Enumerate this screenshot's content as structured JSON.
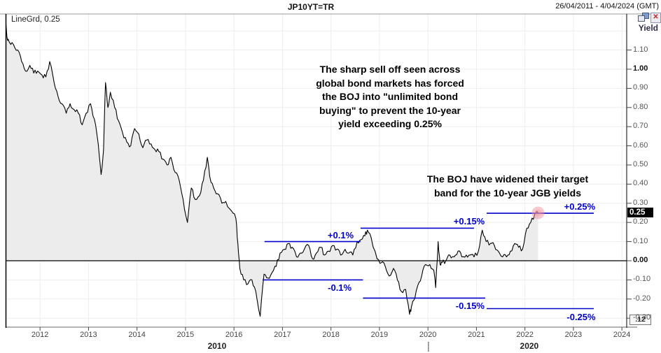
{
  "header": {
    "title": "JP10YT=TR",
    "date_range": "26/04/2011 - 4/04/2024 (GMT)"
  },
  "legend": {
    "series_label": "LineGrd, 0.25"
  },
  "y_axis": {
    "title": "Yield",
    "last_price": "0.25",
    "decimals_box": ".12",
    "ticks": [
      {
        "label": "1.10",
        "value": 1.1,
        "bold": false
      },
      {
        "label": "1.00",
        "value": 1.0,
        "bold": true
      },
      {
        "label": "0.90",
        "value": 0.9,
        "bold": false
      },
      {
        "label": "0.80",
        "value": 0.8,
        "bold": false
      },
      {
        "label": "0.70",
        "value": 0.7,
        "bold": false
      },
      {
        "label": "0.60",
        "value": 0.6,
        "bold": false
      },
      {
        "label": "0.50",
        "value": 0.5,
        "bold": false
      },
      {
        "label": "0.40",
        "value": 0.4,
        "bold": false
      },
      {
        "label": "0.30",
        "value": 0.3,
        "bold": false
      },
      {
        "label": "0.20",
        "value": 0.2,
        "bold": false
      },
      {
        "label": "0.10",
        "value": 0.1,
        "bold": false
      },
      {
        "label": "0.00",
        "value": 0.0,
        "bold": true
      },
      {
        "label": "-0.10",
        "value": -0.1,
        "bold": false
      },
      {
        "label": "-0.20",
        "value": -0.2,
        "bold": false
      },
      {
        "label": "-0.30",
        "value": -0.3,
        "bold": false
      }
    ],
    "grid_values": [
      1.2,
      1.1,
      1.0,
      0.9,
      0.8,
      0.7,
      0.6,
      0.5,
      0.4,
      0.3,
      0.2,
      0.1,
      -0.1,
      -0.2,
      -0.3
    ]
  },
  "x_axis": {
    "year_ticks": [
      {
        "label": "2012",
        "year": 2012
      },
      {
        "label": "2013",
        "year": 2013
      },
      {
        "label": "2014",
        "year": 2014
      },
      {
        "label": "2015",
        "year": 2015
      },
      {
        "label": "2016",
        "year": 2016
      },
      {
        "label": "2017",
        "year": 2017
      },
      {
        "label": "2018",
        "year": 2018
      },
      {
        "label": "2019",
        "year": 2019
      },
      {
        "label": "2020",
        "year": 2020
      },
      {
        "label": "2021",
        "year": 2021
      },
      {
        "label": "2022",
        "year": 2022
      },
      {
        "label": "2023",
        "year": 2023
      },
      {
        "label": "2024",
        "year": 2024
      }
    ],
    "decade_labels": [
      {
        "label": "2010",
        "center_year": 2015.65
      },
      {
        "label": "2020",
        "center_year": 2022.09
      }
    ],
    "decade_divider_year": 2020.01
  },
  "annotations": {
    "unlimited_buying_lines": [
      "The sharp sell off seen across",
      "global bond markets has forced",
      "the BOJ into \"unlimited bond",
      "buying\" to prevent the 10-year",
      "yield exceeding 0.25%"
    ],
    "widened_band_lines": [
      "The BOJ have widened their target",
      "band for the 10-year JGB yields"
    ]
  },
  "chart_data": {
    "type": "line",
    "title": "JP10YT=TR",
    "ylabel": "Yield",
    "x_range": [
      2011.29,
      2024.1
    ],
    "y_range": [
      -0.34,
      1.29
    ],
    "grid": true,
    "series": [
      {
        "name": "JP10YT=TR 10-year JGB yield",
        "points": [
          [
            2011.29,
            1.25
          ],
          [
            2011.33,
            1.15
          ],
          [
            2011.37,
            1.14
          ],
          [
            2011.45,
            1.13
          ],
          [
            2011.54,
            1.1
          ],
          [
            2011.62,
            1.04
          ],
          [
            2011.7,
            0.99
          ],
          [
            2011.79,
            1.02
          ],
          [
            2011.87,
            0.98
          ],
          [
            2011.95,
            0.99
          ],
          [
            2012.04,
            0.97
          ],
          [
            2012.12,
            0.96
          ],
          [
            2012.2,
            1.04
          ],
          [
            2012.29,
            0.93
          ],
          [
            2012.37,
            0.86
          ],
          [
            2012.45,
            0.82
          ],
          [
            2012.54,
            0.77
          ],
          [
            2012.62,
            0.82
          ],
          [
            2012.7,
            0.79
          ],
          [
            2012.79,
            0.77
          ],
          [
            2012.87,
            0.71
          ],
          [
            2012.95,
            0.77
          ],
          [
            2013.04,
            0.82
          ],
          [
            2013.12,
            0.74
          ],
          [
            2013.2,
            0.61
          ],
          [
            2013.26,
            0.45
          ],
          [
            2013.31,
            0.58
          ],
          [
            2013.35,
            0.93
          ],
          [
            2013.4,
            0.8
          ],
          [
            2013.45,
            0.88
          ],
          [
            2013.54,
            0.8
          ],
          [
            2013.62,
            0.73
          ],
          [
            2013.7,
            0.67
          ],
          [
            2013.79,
            0.62
          ],
          [
            2013.87,
            0.6
          ],
          [
            2013.95,
            0.69
          ],
          [
            2014.04,
            0.66
          ],
          [
            2014.12,
            0.59
          ],
          [
            2014.2,
            0.63
          ],
          [
            2014.29,
            0.61
          ],
          [
            2014.37,
            0.58
          ],
          [
            2014.45,
            0.57
          ],
          [
            2014.54,
            0.53
          ],
          [
            2014.62,
            0.5
          ],
          [
            2014.7,
            0.54
          ],
          [
            2014.79,
            0.46
          ],
          [
            2014.87,
            0.42
          ],
          [
            2014.95,
            0.32
          ],
          [
            2015.04,
            0.2
          ],
          [
            2015.12,
            0.38
          ],
          [
            2015.2,
            0.32
          ],
          [
            2015.29,
            0.34
          ],
          [
            2015.37,
            0.42
          ],
          [
            2015.45,
            0.54
          ],
          [
            2015.5,
            0.44
          ],
          [
            2015.58,
            0.38
          ],
          [
            2015.66,
            0.35
          ],
          [
            2015.75,
            0.3
          ],
          [
            2015.83,
            0.31
          ],
          [
            2015.95,
            0.26
          ],
          [
            2016.04,
            0.22
          ],
          [
            2016.08,
            0.09
          ],
          [
            2016.12,
            -0.04
          ],
          [
            2016.2,
            -0.1
          ],
          [
            2016.29,
            -0.12
          ],
          [
            2016.37,
            -0.1
          ],
          [
            2016.45,
            -0.16
          ],
          [
            2016.54,
            -0.29
          ],
          [
            2016.62,
            -0.07
          ],
          [
            2016.7,
            -0.09
          ],
          [
            2016.79,
            -0.06
          ],
          [
            2016.87,
            -0.03
          ],
          [
            2016.95,
            0.04
          ],
          [
            2017.04,
            0.06
          ],
          [
            2017.12,
            0.09
          ],
          [
            2017.2,
            0.07
          ],
          [
            2017.29,
            0.02
          ],
          [
            2017.37,
            0.04
          ],
          [
            2017.45,
            0.06
          ],
          [
            2017.54,
            0.08
          ],
          [
            2017.62,
            0.01
          ],
          [
            2017.7,
            0.04
          ],
          [
            2017.79,
            0.07
          ],
          [
            2017.87,
            0.03
          ],
          [
            2017.95,
            0.05
          ],
          [
            2018.04,
            0.08
          ],
          [
            2018.12,
            0.06
          ],
          [
            2018.2,
            0.03
          ],
          [
            2018.29,
            0.06
          ],
          [
            2018.37,
            0.04
          ],
          [
            2018.45,
            0.03
          ],
          [
            2018.54,
            0.1
          ],
          [
            2018.62,
            0.11
          ],
          [
            2018.7,
            0.13
          ],
          [
            2018.75,
            0.16
          ],
          [
            2018.83,
            0.12
          ],
          [
            2018.95,
            0.01
          ],
          [
            2019.04,
            -0.01
          ],
          [
            2019.12,
            -0.03
          ],
          [
            2019.2,
            -0.08
          ],
          [
            2019.29,
            -0.04
          ],
          [
            2019.37,
            -0.1
          ],
          [
            2019.45,
            -0.16
          ],
          [
            2019.54,
            -0.15
          ],
          [
            2019.62,
            -0.28
          ],
          [
            2019.66,
            -0.24
          ],
          [
            2019.7,
            -0.21
          ],
          [
            2019.79,
            -0.13
          ],
          [
            2019.87,
            -0.08
          ],
          [
            2019.95,
            -0.02
          ],
          [
            2020.04,
            -0.02
          ],
          [
            2020.12,
            -0.05
          ],
          [
            2020.16,
            -0.14
          ],
          [
            2020.21,
            0.1
          ],
          [
            2020.25,
            -0.02
          ],
          [
            2020.29,
            -0.01
          ],
          [
            2020.37,
            0.0
          ],
          [
            2020.45,
            0.03
          ],
          [
            2020.54,
            0.02
          ],
          [
            2020.62,
            0.05
          ],
          [
            2020.7,
            0.02
          ],
          [
            2020.79,
            0.03
          ],
          [
            2020.87,
            0.03
          ],
          [
            2020.95,
            0.02
          ],
          [
            2021.04,
            0.05
          ],
          [
            2021.12,
            0.16
          ],
          [
            2021.2,
            0.1
          ],
          [
            2021.29,
            0.09
          ],
          [
            2021.37,
            0.08
          ],
          [
            2021.45,
            0.05
          ],
          [
            2021.54,
            0.02
          ],
          [
            2021.62,
            0.02
          ],
          [
            2021.7,
            0.05
          ],
          [
            2021.79,
            0.09
          ],
          [
            2021.87,
            0.07
          ],
          [
            2021.95,
            0.06
          ],
          [
            2022.04,
            0.17
          ],
          [
            2022.12,
            0.2
          ],
          [
            2022.2,
            0.24
          ],
          [
            2022.27,
            0.25
          ]
        ]
      }
    ],
    "bands": [
      {
        "label": "+0.1%",
        "value": 0.1,
        "line_value": 0.1,
        "from_year": 2016.63,
        "to_year": 2018.61,
        "label_year": 2018.2
      },
      {
        "label": "-0.1%",
        "value": -0.1,
        "line_value": -0.1,
        "from_year": 2016.59,
        "to_year": 2018.66,
        "label_year": 2018.18
      },
      {
        "label": "+0.15%",
        "value": 0.15,
        "line_value": 0.17,
        "from_year": 2018.61,
        "to_year": 2020.95,
        "label_year": 2020.85
      },
      {
        "label": "-0.15%",
        "value": -0.15,
        "line_value": -0.195,
        "from_year": 2018.66,
        "to_year": 2021.18,
        "label_year": 2020.87
      },
      {
        "label": "+0.25%",
        "value": 0.25,
        "line_value": 0.248,
        "from_year": 2021.21,
        "to_year": 2023.42,
        "label_year": 2023.13
      },
      {
        "label": "-0.25%",
        "value": -0.25,
        "line_value": -0.25,
        "from_year": 2021.21,
        "to_year": 2023.42,
        "label_year": 2023.16
      }
    ],
    "last_point": {
      "year": 2022.27,
      "value": 0.25,
      "highlighted": true
    }
  },
  "colors": {
    "line": "#000000",
    "area_fill": "#ececec",
    "band_blue": "#0000cd",
    "grid": "#ededed",
    "frame": "#9a9a9a",
    "axis_black": "#000000",
    "marker_pink": "#f0919e",
    "badge_bg": "#000000",
    "badge_text": "#ffffff",
    "annotation": "#000000"
  }
}
